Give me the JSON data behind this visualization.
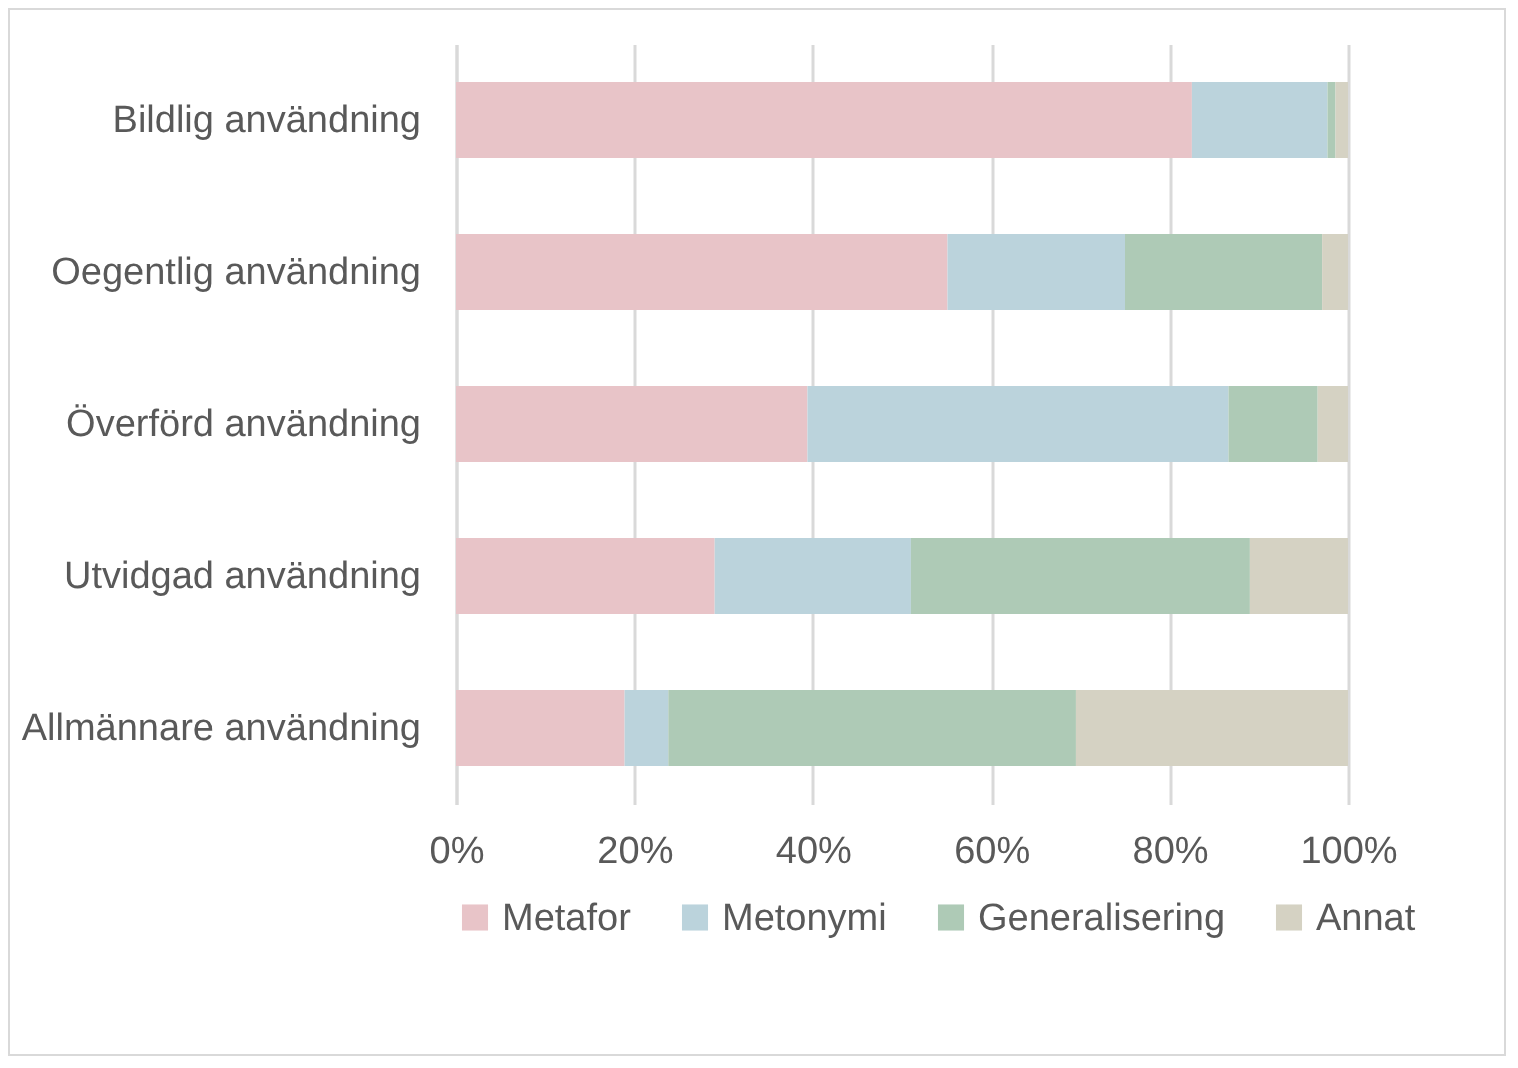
{
  "chart_data": {
    "type": "bar",
    "orientation": "horizontal",
    "stacked": true,
    "categories": [
      "Bildlig användning",
      "Oegentlig användning",
      "Överförd användning",
      "Utvidgad användning",
      "Allmännare användning"
    ],
    "series": [
      {
        "name": "Metafor",
        "color": "#e8c4c8",
        "values": [
          82.5,
          55.1,
          39.4,
          29.0,
          18.9
        ]
      },
      {
        "name": "Metonymi",
        "color": "#bbd3dc",
        "values": [
          15.2,
          19.9,
          47.2,
          22.0,
          4.9
        ]
      },
      {
        "name": "Generalisering",
        "color": "#aecab6",
        "values": [
          0.9,
          22.1,
          10.0,
          38.0,
          45.7
        ]
      },
      {
        "name": "Annat",
        "color": "#d5d2c3",
        "values": [
          1.4,
          2.9,
          3.4,
          11.0,
          30.5
        ]
      }
    ],
    "xlim": [
      0,
      100
    ],
    "xticks": [
      {
        "value": 0,
        "label": "0%"
      },
      {
        "value": 20,
        "label": "20%"
      },
      {
        "value": 40,
        "label": "40%"
      },
      {
        "value": 60,
        "label": "60%"
      },
      {
        "value": 80,
        "label": "80%"
      },
      {
        "value": 100,
        "label": "100%"
      }
    ],
    "grid": "x",
    "legend": "bottom"
  }
}
